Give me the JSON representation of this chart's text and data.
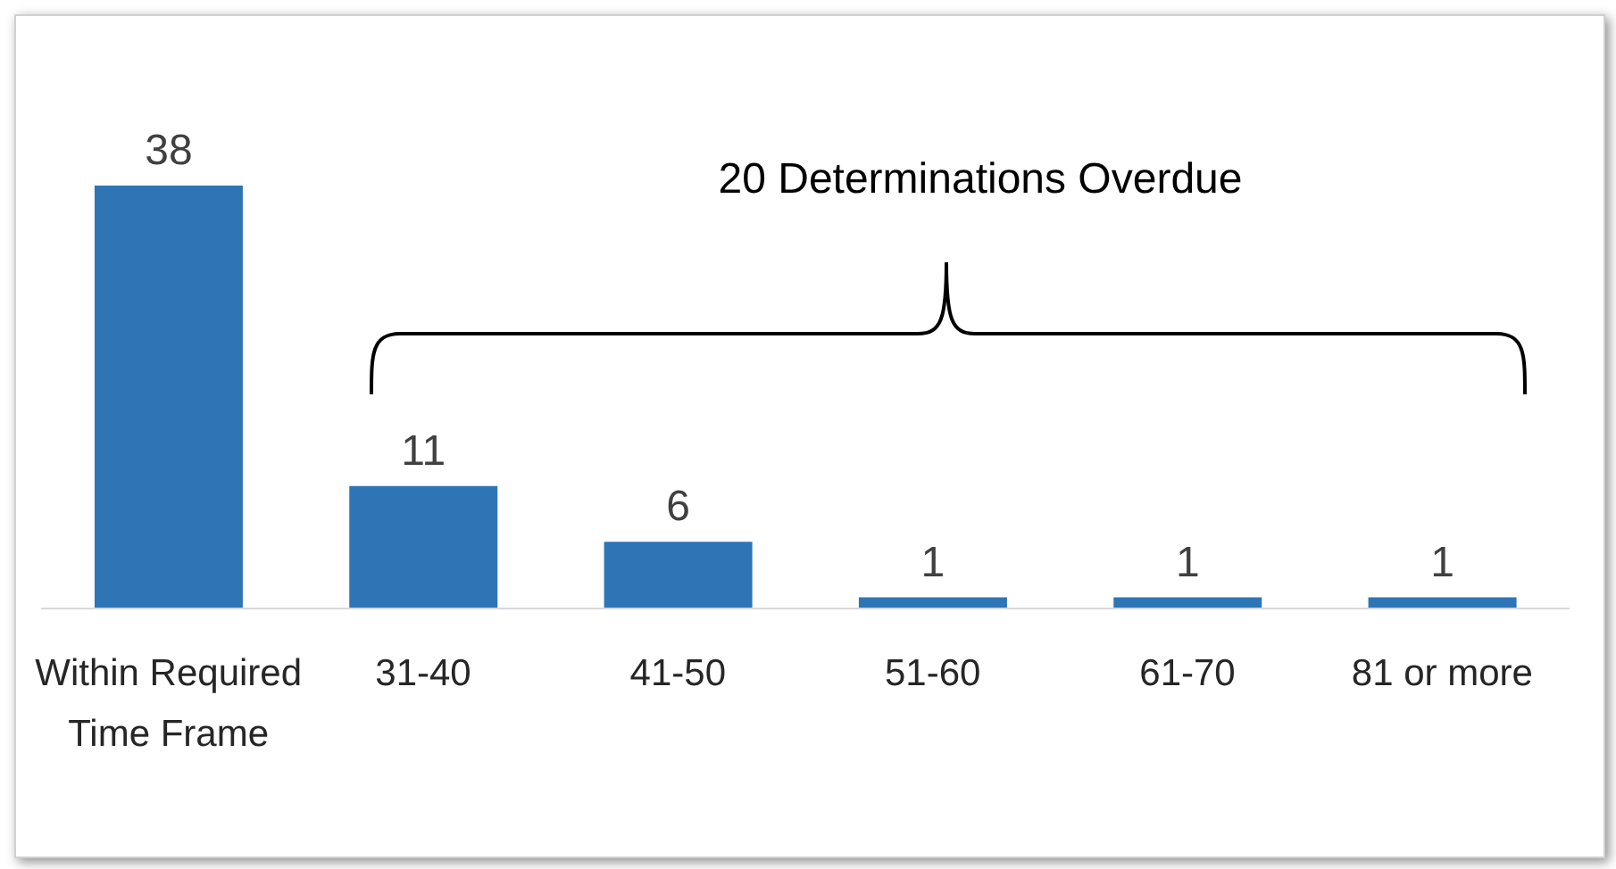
{
  "chart_data": {
    "type": "bar",
    "categories": [
      "Within Required Time Frame",
      "31-40",
      "41-50",
      "51-60",
      "61-70",
      "81 or more"
    ],
    "values": [
      38,
      11,
      6,
      1,
      1,
      1
    ],
    "color": "#2e75b6",
    "data_labels": true,
    "annotations": [
      "20 Determinations Overdue"
    ]
  }
}
